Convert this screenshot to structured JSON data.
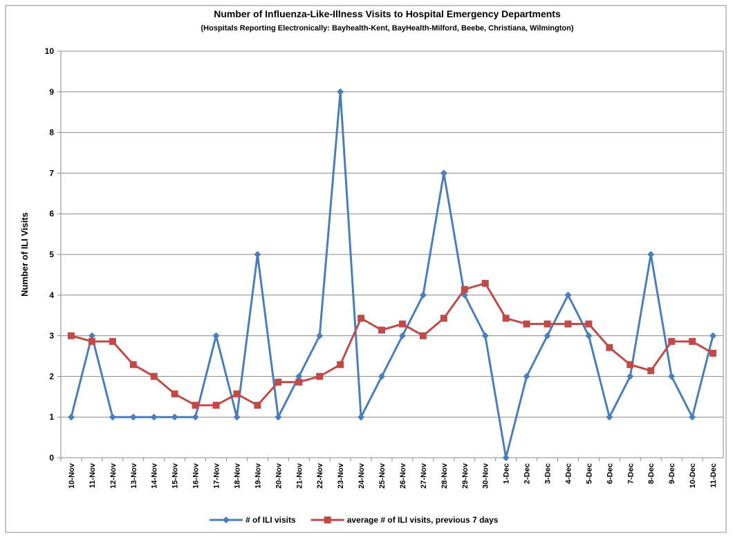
{
  "chart_data": {
    "type": "line",
    "title": "Number of Influenza-Like-Illness  Visits to Hospital Emergency Departments",
    "subtitle": "(Hospitals Reporting Electronically: Bayhealth-Kent,  BayHealth-Milford,  Beebe,  Christiana,  Wilmington)",
    "y_label": "Number of ILI Visits",
    "categories": [
      "10-Nov",
      "11-Nov",
      "12-Nov",
      "13-Nov",
      "14-Nov",
      "15-Nov",
      "16-Nov",
      "17-Nov",
      "18-Nov",
      "19-Nov",
      "20-Nov",
      "21-Nov",
      "22-Nov",
      "23-Nov",
      "24-Nov",
      "25-Nov",
      "26-Nov",
      "27-Nov",
      "28-Nov",
      "29-Nov",
      "30-Nov",
      "1-Dec",
      "2-Dec",
      "3-Dec",
      "4-Dec",
      "5-Dec",
      "6-Dec",
      "7-Dec",
      "8-Dec",
      "9-Dec",
      "10-Dec",
      "11-Dec"
    ],
    "series": [
      {
        "name": "# of ILI visits",
        "color": "#4a7ebb",
        "marker": "diamond",
        "values": [
          1,
          3,
          1,
          1,
          1,
          1,
          1,
          3,
          1,
          5,
          1,
          2,
          3,
          9,
          1,
          2,
          3,
          4,
          7,
          4,
          3,
          0,
          2,
          3,
          4,
          3,
          1,
          2,
          5,
          2,
          1,
          3
        ]
      },
      {
        "name": "average # of ILI visits, previous 7 days",
        "color": "#be4b48",
        "marker": "square",
        "values": [
          3,
          2.86,
          2.86,
          2.29,
          2,
          1.57,
          1.29,
          1.29,
          1.57,
          1.29,
          1.86,
          1.86,
          2,
          2.29,
          3.43,
          3.14,
          3.29,
          3,
          3.43,
          4.14,
          4.29,
          3.43,
          3.29,
          3.29,
          3.29,
          3.29,
          2.71,
          2.29,
          2.14,
          2.86,
          2.86,
          2.57
        ]
      }
    ],
    "ylim": [
      0,
      10
    ],
    "yticks": [
      0,
      1,
      2,
      3,
      4,
      5,
      6,
      7,
      8,
      9,
      10
    ],
    "grid": true,
    "legend": "bottom"
  }
}
